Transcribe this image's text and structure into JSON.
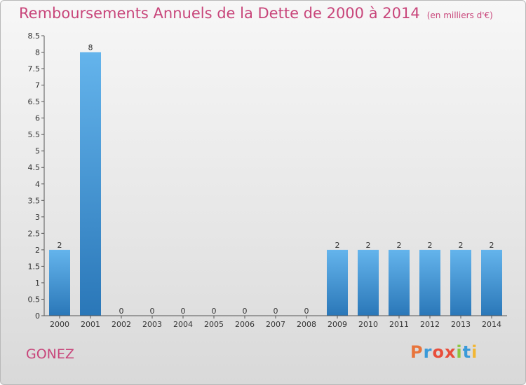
{
  "header": {
    "title": "Remboursements Annuels de la Dette de 2000 à 2014",
    "unit": "(en milliers d'€)"
  },
  "footer": {
    "commune": "GONEZ",
    "logo_letters": [
      "P",
      "r",
      "o",
      "x",
      "i",
      "t",
      "i"
    ]
  },
  "colors": {
    "title": "#c8457a",
    "bar_top": "#64b4ec",
    "bar_bottom": "#2a77b8",
    "logo": [
      "#e8743b",
      "#3a9ad9",
      "#e84e3b",
      "#e84e3b",
      "#8cc63f",
      "#3a9ad9",
      "#f2b632"
    ]
  },
  "chart_data": {
    "type": "bar",
    "title": "Remboursements Annuels de la Dette de 2000 à 2014",
    "ylabel": "",
    "xlabel": "",
    "categories": [
      "2000",
      "2001",
      "2002",
      "2003",
      "2004",
      "2005",
      "2006",
      "2007",
      "2008",
      "2009",
      "2010",
      "2011",
      "2012",
      "2013",
      "2014"
    ],
    "values": [
      2,
      8,
      0,
      0,
      0,
      0,
      0,
      0,
      0,
      2,
      2,
      2,
      2,
      2,
      2
    ],
    "ylim": [
      0,
      8.5
    ],
    "yticks": [
      "0",
      "0.5",
      "1",
      "1.5",
      "2",
      "2.5",
      "3",
      "3.5",
      "4",
      "4.5",
      "5",
      "5.5",
      "6",
      "6.5",
      "7",
      "7.5",
      "8",
      "8.5"
    ],
    "grid": false
  }
}
